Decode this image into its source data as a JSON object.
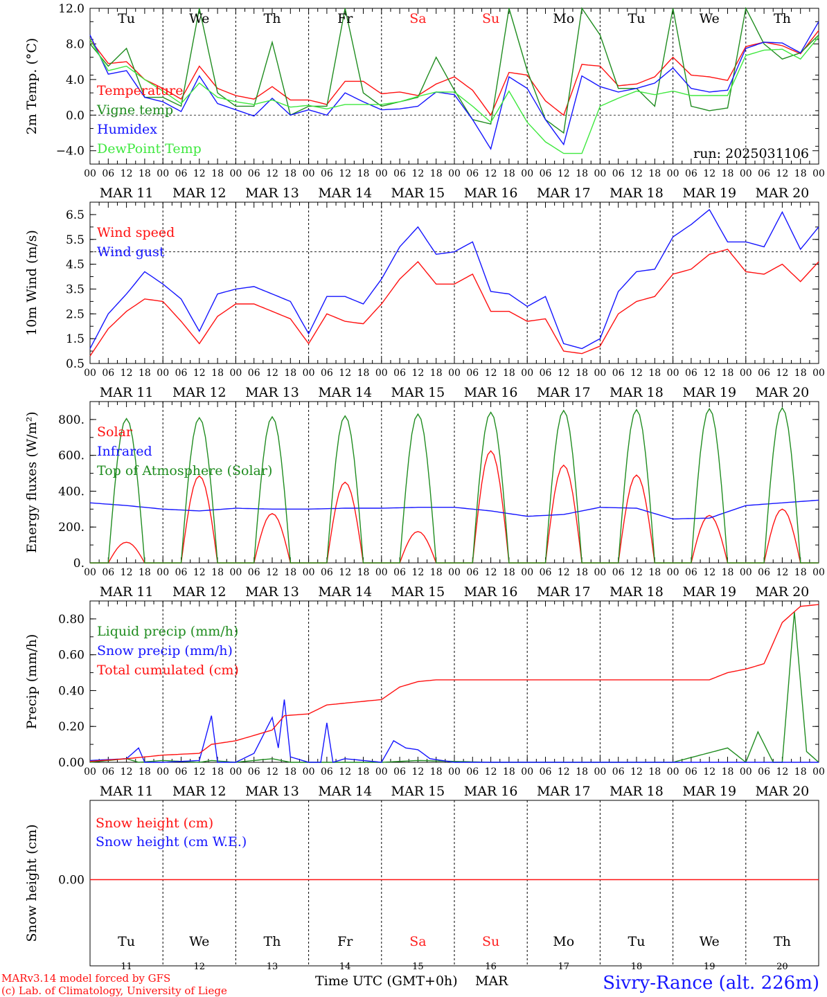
{
  "days": [
    "Tu",
    "We",
    "Th",
    "Fr",
    "Sa",
    "Su",
    "Mo",
    "Tu",
    "We",
    "Th"
  ],
  "weekend_days": [
    4,
    5
  ],
  "date_labels": [
    "MAR 11",
    "MAR 12",
    "MAR 13",
    "MAR 14",
    "MAR 15",
    "MAR 16",
    "MAR 17",
    "MAR 18",
    "MAR 19",
    "MAR 20"
  ],
  "day_numbers": [
    "11",
    "12",
    "13",
    "14",
    "15",
    "16",
    "17",
    "18",
    "19",
    "20"
  ],
  "hour_ticks": [
    "00",
    "06",
    "12",
    "18"
  ],
  "last_tick": "00",
  "colors": {
    "red": "#ff1010",
    "green": "#1f8c1f",
    "blue": "#1414ff",
    "lightgreen": "#3ee83e",
    "weekend": "#ff2020"
  },
  "footer": {
    "model": "MARv3.14 model forced by GFS",
    "lab": "(c) Lab. of Climatology, University of Liege",
    "time_label": "Time UTC (GMT+0h)",
    "month": "MAR",
    "station": "Sivry-Rance (alt. 226m)"
  },
  "chart_data": [
    {
      "type": "line",
      "ylabel": "2m Temp. (°C)",
      "ylim": [
        -5.5,
        12.0
      ],
      "yticks": [
        12.0,
        8.0,
        4.0,
        0.0,
        -4.0
      ],
      "ytick_labels": [
        "12.0",
        "8.0",
        "4.0",
        "0.0",
        "−4.0"
      ],
      "ref_line": 0.0,
      "annotation": "run: 2025031106",
      "x_hours": [
        0,
        6,
        12,
        18,
        24,
        30,
        36,
        42,
        48,
        54,
        60,
        66,
        72,
        78,
        84,
        90,
        96,
        102,
        108,
        114,
        120,
        126,
        132,
        138,
        144,
        150,
        156,
        162,
        168,
        174,
        180,
        186,
        192,
        198,
        204,
        210,
        216,
        222,
        228,
        234,
        240
      ],
      "series": [
        {
          "name": "Temperature",
          "color": "red",
          "values": [
            8.5,
            5.8,
            6.0,
            4.0,
            3.0,
            1.8,
            5.5,
            3.0,
            2.2,
            1.8,
            3.2,
            1.7,
            1.7,
            1.2,
            3.8,
            3.8,
            2.4,
            2.6,
            2.2,
            3.5,
            4.3,
            2.8,
            0.0,
            4.8,
            4.5,
            1.6,
            0.0,
            5.7,
            5.5,
            3.3,
            3.5,
            4.3,
            6.5,
            4.5,
            4.3,
            3.9,
            7.7,
            8.2,
            7.8,
            6.9,
            9.5
          ]
        },
        {
          "name": "Vigne temp",
          "color": "green",
          "values": [
            8.0,
            5.5,
            7.5,
            2.0,
            2.0,
            1.0,
            12.0,
            2.5,
            1.0,
            1.0,
            8.2,
            0.0,
            1.0,
            1.0,
            12.0,
            2.5,
            1.0,
            1.5,
            2.0,
            6.5,
            2.8,
            -0.5,
            -1.0,
            12.0,
            5.0,
            -0.5,
            -2.0,
            12.0,
            9.0,
            3.0,
            3.0,
            1.0,
            12.0,
            1.0,
            0.5,
            0.8,
            12.0,
            8.0,
            6.3,
            7.0,
            9.0
          ]
        },
        {
          "name": "Humidex",
          "color": "blue",
          "values": [
            9.0,
            4.6,
            5.0,
            2.0,
            1.5,
            0.4,
            4.4,
            1.3,
            0.6,
            -0.1,
            1.9,
            0.0,
            0.6,
            0.0,
            2.5,
            1.5,
            0.6,
            0.7,
            1.0,
            2.6,
            2.3,
            -0.5,
            -3.8,
            4.3,
            3.0,
            -0.5,
            -3.3,
            4.4,
            3.2,
            2.6,
            3.0,
            3.6,
            5.3,
            3.0,
            2.6,
            2.8,
            7.5,
            8.2,
            8.1,
            7.0,
            10.5
          ]
        },
        {
          "name": "DewPoint Temp",
          "color": "lightgreen",
          "values": [
            8.5,
            5.0,
            5.5,
            4.0,
            2.7,
            1.3,
            3.6,
            2.0,
            1.5,
            1.2,
            1.7,
            0.9,
            1.1,
            0.7,
            1.2,
            1.2,
            1.2,
            1.5,
            2.1,
            2.6,
            2.6,
            1.0,
            -0.8,
            2.7,
            -0.8,
            -3.0,
            -4.3,
            -4.3,
            1.0,
            1.9,
            2.7,
            2.3,
            2.7,
            2.2,
            2.2,
            2.2,
            6.7,
            7.3,
            7.4,
            6.3,
            8.8
          ]
        }
      ]
    },
    {
      "type": "line",
      "ylabel": "10m Wind (m/s)",
      "ylim": [
        0.5,
        7.0
      ],
      "yticks": [
        6.5,
        5.5,
        4.5,
        3.5,
        2.5,
        1.5,
        0.5
      ],
      "ytick_labels": [
        "6.5",
        "5.5",
        "4.5",
        "3.5",
        "2.5",
        "1.5",
        "0.5"
      ],
      "ref_line": 5.0,
      "x_hours": [
        0,
        6,
        12,
        18,
        24,
        30,
        36,
        42,
        48,
        54,
        60,
        66,
        72,
        78,
        84,
        90,
        96,
        102,
        108,
        114,
        120,
        126,
        132,
        138,
        144,
        150,
        156,
        162,
        168,
        174,
        180,
        186,
        192,
        198,
        204,
        210,
        216,
        222,
        228,
        234,
        240
      ],
      "series": [
        {
          "name": "Wind speed",
          "color": "red",
          "values": [
            0.8,
            1.9,
            2.6,
            3.1,
            3.0,
            2.2,
            1.3,
            2.4,
            2.9,
            2.9,
            2.6,
            2.3,
            1.3,
            2.5,
            2.2,
            2.1,
            2.9,
            3.9,
            4.6,
            3.7,
            3.7,
            4.1,
            2.6,
            2.6,
            2.2,
            2.3,
            1.0,
            0.9,
            1.2,
            2.5,
            3.0,
            3.2,
            4.1,
            4.3,
            4.9,
            5.1,
            4.2,
            4.1,
            4.5,
            3.8,
            4.6
          ]
        },
        {
          "name": "Wind gust",
          "color": "blue",
          "values": [
            1.1,
            2.5,
            3.3,
            4.2,
            3.7,
            3.1,
            1.8,
            3.3,
            3.5,
            3.6,
            3.3,
            3.0,
            1.7,
            3.2,
            3.2,
            2.9,
            3.9,
            5.2,
            6.0,
            4.9,
            5.0,
            5.4,
            3.4,
            3.3,
            2.8,
            3.2,
            1.3,
            1.1,
            1.5,
            3.4,
            4.2,
            4.3,
            5.6,
            6.1,
            6.7,
            5.4,
            5.4,
            5.2,
            6.6,
            5.1,
            6.0
          ]
        }
      ]
    },
    {
      "type": "line",
      "ylabel": "Energy fluxes (W/m²)",
      "ylim": [
        0,
        900
      ],
      "yticks": [
        800,
        600,
        400,
        200,
        0
      ],
      "ytick_labels": [
        "800.",
        "600.",
        "400.",
        "200.",
        "0."
      ],
      "series": [
        {
          "name": "Solar",
          "color": "red",
          "peaks": [
            115,
            485,
            275,
            450,
            175,
            625,
            545,
            490,
            265,
            300
          ]
        },
        {
          "name": "Infrared",
          "color": "blue",
          "x_hours": [
            0,
            12,
            24,
            36,
            48,
            60,
            72,
            84,
            96,
            108,
            120,
            132,
            144,
            156,
            168,
            180,
            192,
            204,
            216,
            228,
            240
          ],
          "values": [
            335,
            320,
            300,
            290,
            305,
            300,
            300,
            305,
            305,
            310,
            310,
            290,
            260,
            270,
            310,
            305,
            245,
            250,
            320,
            335,
            350
          ]
        },
        {
          "name": "Top of Atmosphere (Solar)",
          "color": "green",
          "peaks": [
            805,
            810,
            815,
            820,
            830,
            840,
            850,
            855,
            860,
            865
          ]
        }
      ]
    },
    {
      "type": "line",
      "ylabel": "Precip (mm/h)",
      "ylim": [
        0,
        0.9
      ],
      "yticks": [
        0.8,
        0.6,
        0.4,
        0.2,
        0.0
      ],
      "ytick_labels": [
        "0.80",
        "0.60",
        "0.40",
        "0.20",
        "0.00"
      ],
      "series": [
        {
          "name": "Liquid precip (mm/h)",
          "color": "green",
          "x_hours": [
            0,
            12,
            16,
            24,
            36,
            40,
            48,
            60,
            66,
            72,
            96,
            108,
            132,
            168,
            192,
            210,
            216,
            220,
            225,
            228,
            232,
            236,
            240
          ],
          "values": [
            0.0,
            0.02,
            0.0,
            0.01,
            0.0,
            0.01,
            0.0,
            0.02,
            0.0,
            0.0,
            0.0,
            0.01,
            0.0,
            0.0,
            0.0,
            0.08,
            0.0,
            0.17,
            0.0,
            0.0,
            0.84,
            0.06,
            0.0
          ]
        },
        {
          "name": "Snow precip (mm/h)",
          "color": "blue",
          "x_hours": [
            0,
            12,
            16,
            18,
            24,
            36,
            40,
            42,
            48,
            54,
            60,
            62,
            64,
            66,
            72,
            76,
            78,
            80,
            84,
            96,
            100,
            104,
            108,
            112,
            120,
            132,
            168,
            240
          ],
          "values": [
            0.01,
            0.02,
            0.08,
            0.0,
            0.0,
            0.01,
            0.26,
            0.0,
            0.0,
            0.05,
            0.25,
            0.08,
            0.35,
            0.03,
            0.0,
            0.0,
            0.22,
            0.0,
            0.02,
            0.0,
            0.12,
            0.08,
            0.07,
            0.02,
            0.0,
            0.0,
            0.0,
            0.0
          ]
        },
        {
          "name": "Total cumulated (cm)",
          "color": "red",
          "x_hours": [
            0,
            12,
            24,
            36,
            40,
            48,
            60,
            64,
            72,
            78,
            84,
            96,
            102,
            108,
            114,
            120,
            132,
            168,
            192,
            204,
            210,
            216,
            222,
            228,
            234,
            240
          ],
          "values": [
            0.005,
            0.02,
            0.04,
            0.05,
            0.1,
            0.12,
            0.18,
            0.26,
            0.27,
            0.32,
            0.33,
            0.35,
            0.42,
            0.45,
            0.46,
            0.46,
            0.46,
            0.46,
            0.46,
            0.46,
            0.5,
            0.52,
            0.55,
            0.78,
            0.87,
            0.88
          ]
        }
      ]
    },
    {
      "type": "line",
      "ylabel": "Snow height (cm)",
      "ytick_labels": [
        "0.00"
      ],
      "series": [
        {
          "name": "Snow height (cm)",
          "color": "red",
          "values": [
            0.0
          ]
        },
        {
          "name": "Snow height (cm W.E.)",
          "color": "blue",
          "values": [
            0.0
          ]
        }
      ]
    }
  ]
}
